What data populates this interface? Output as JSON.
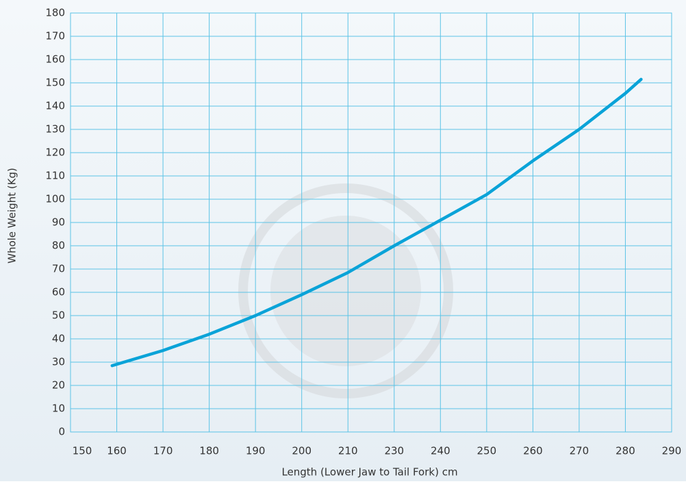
{
  "chart_data": {
    "type": "line",
    "xlabel": "Length (Lower Jaw to Tail Fork) cm",
    "ylabel": "Whole Weight (Kg)",
    "xticks": [
      150,
      160,
      170,
      180,
      190,
      200,
      210,
      230,
      240,
      250,
      260,
      270,
      280,
      290
    ],
    "ylim": [
      0,
      180
    ],
    "yticks": [
      0,
      10,
      20,
      30,
      40,
      50,
      60,
      70,
      80,
      90,
      100,
      110,
      120,
      130,
      140,
      150,
      160,
      170,
      180
    ],
    "grid": true,
    "series": [
      {
        "color": "#0aa3d8",
        "x": [
          159,
          170,
          180,
          190,
          200,
          210,
          230,
          240,
          250,
          260,
          270,
          280,
          283.4
        ],
        "values": [
          28.5,
          35,
          42,
          50,
          59,
          68.5,
          80,
          91,
          102,
          116.5,
          130,
          145.5,
          151.5
        ]
      }
    ]
  }
}
